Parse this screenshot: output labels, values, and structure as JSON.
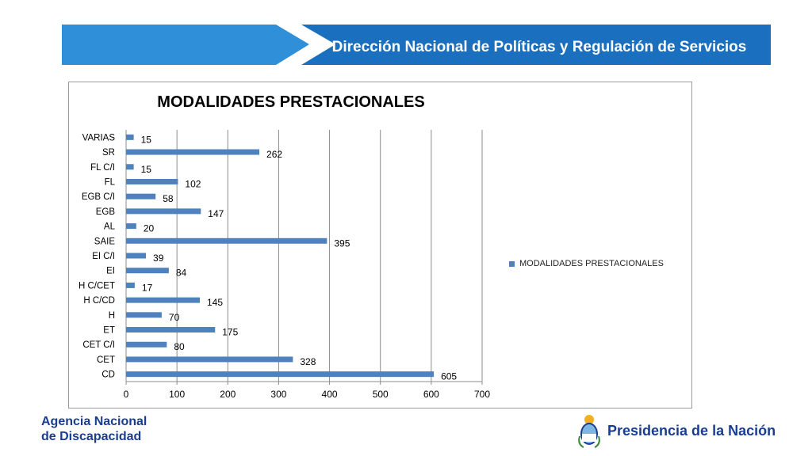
{
  "header": {
    "title": "Dirección Nacional de Políticas y Regulación de Servicios"
  },
  "colors": {
    "banner_light": "#2f8fd8",
    "banner_dark": "#1b6fbf",
    "bar": "#4f81bd",
    "brand_text": "#1a3d8f"
  },
  "chart_data": {
    "type": "bar",
    "orientation": "horizontal",
    "title": "MODALIDADES PRESTACIONALES",
    "categories": [
      "VARIAS",
      "SR",
      "FL C/I",
      "FL",
      "EGB C/I",
      "EGB",
      "AL",
      "SAIE",
      "EI C/I",
      "EI",
      "H C/CET",
      "H C/CD",
      "H",
      "ET",
      "CET C/I",
      "CET",
      "CD"
    ],
    "series": [
      {
        "name": "MODALIDADES PRESTACIONALES",
        "values": [
          15,
          262,
          15,
          102,
          58,
          147,
          20,
          395,
          39,
          84,
          17,
          145,
          70,
          175,
          80,
          328,
          605
        ]
      }
    ],
    "xlim": [
      0,
      700
    ],
    "xticks": [
      0,
      100,
      200,
      300,
      400,
      500,
      600,
      700
    ],
    "grid": "vertical",
    "legend_position": "right"
  },
  "footer": {
    "left_line1": "Agencia Nacional",
    "left_line2": "de Discapacidad",
    "right_label": "Presidencia de la Nación",
    "right_icon": "coat-of-arms-icon"
  }
}
